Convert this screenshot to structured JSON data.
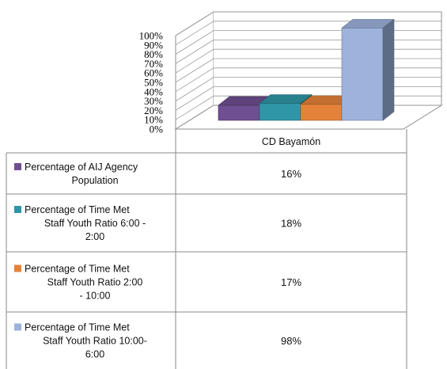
{
  "chart_data": {
    "type": "bar",
    "style": "3d-clustered-column-with-data-table",
    "categories": [
      "CD Bayamón"
    ],
    "series": [
      {
        "name": "Percentage of AIJ Agency Population",
        "name_lines": [
          "Percentage of AIJ Agency",
          "Population"
        ],
        "values": [
          0.16
        ],
        "label": "16%",
        "color": "#6f4f91"
      },
      {
        "name": "Percentage of Time Met Staff Youth Ratio 6:00 - 2:00",
        "name_lines": [
          "Percentage of Time Met",
          "Staff Youth Ratio  6:00 -",
          "2:00"
        ],
        "values": [
          0.18
        ],
        "label": "18%",
        "color": "#2f96a8"
      },
      {
        "name": "Percentage of Time Met Staff Youth Ratio 2:00 - 10:00",
        "name_lines": [
          "Percentage of Time Met",
          "Staff Youth Ratio      2:00",
          "- 10:00"
        ],
        "values": [
          0.17
        ],
        "label": "17%",
        "color": "#e5823a"
      },
      {
        "name": "Percentage of Time Met Staff Youth Ratio 10:00-6:00",
        "name_lines": [
          "Percentage of Time Met",
          "Staff Youth Ratio    10:00-",
          "6:00"
        ],
        "values": [
          0.98
        ],
        "label": "98%",
        "color": "#9db3dc"
      }
    ],
    "y_ticks": [
      "0%",
      "10%",
      "20%",
      "30%",
      "40%",
      "50%",
      "60%",
      "70%",
      "80%",
      "90%",
      "100%"
    ],
    "ylim": [
      0,
      1
    ],
    "grid": true,
    "legend": "data-table-below"
  }
}
